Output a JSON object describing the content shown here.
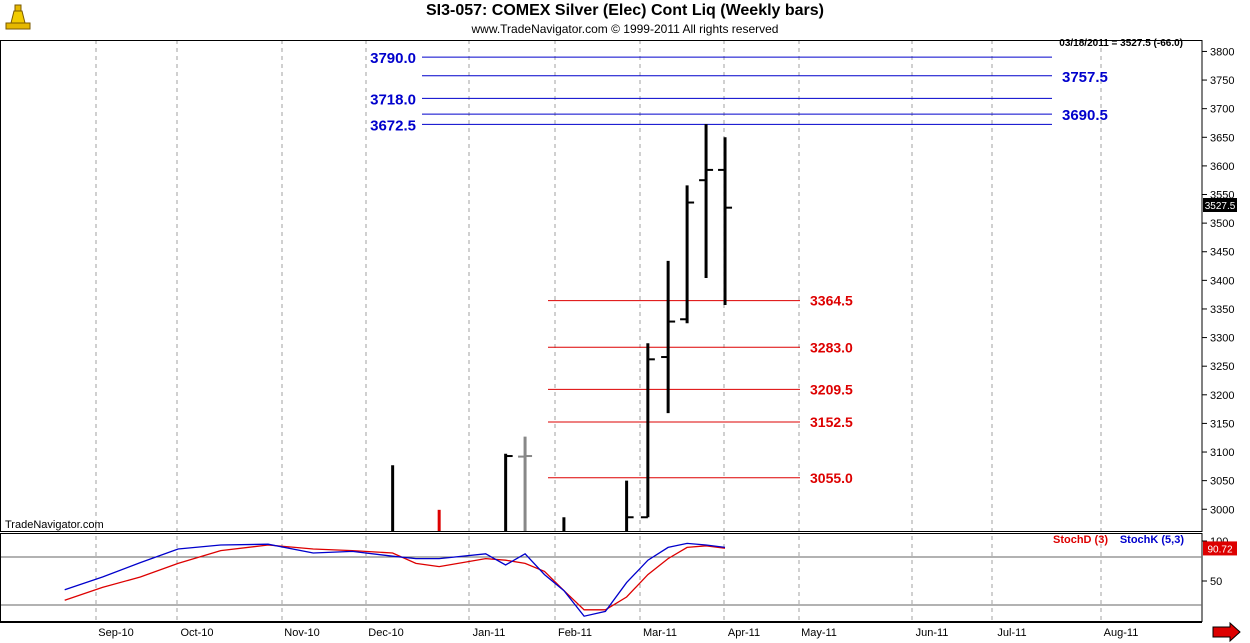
{
  "header": {
    "title": "SI3-057:  COMEX Silver (Elec) Cont Liq  (Weekly bars)",
    "copyright": "www.TradeNavigator.com © 1999-2011 All rights reserved",
    "last_quote": "03/18/2011 = 3527.5 (-66.0)",
    "watermark": "TradeNavigator.com",
    "price_tag": "3527.5"
  },
  "colors": {
    "grid": "#a0a0a0",
    "blue_levels": "#0000cc",
    "red_levels": "#dd0000",
    "stochD": "#dd0000",
    "stochK": "#0000cc",
    "bar": "#000000",
    "bar_gray": "#888888",
    "bar_red": "#dd0000"
  },
  "chart_data": [
    {
      "type": "bar",
      "subtype": "ohlc",
      "title": "SI3-057:  COMEX Silver (Elec) Cont Liq  (Weekly bars)",
      "x_ticks": [
        "Sep-10",
        "Oct-10",
        "Nov-10",
        "Dec-10",
        "Jan-11",
        "Feb-11",
        "Mar-11",
        "Apr-11",
        "May-11",
        "Jun-11",
        "Jul-11",
        "Aug-11"
      ],
      "y_ticks": [
        3000,
        3050,
        3100,
        3150,
        3200,
        3250,
        3300,
        3350,
        3400,
        3450,
        3500,
        3550,
        3600,
        3650,
        3700,
        3750,
        3800
      ],
      "ylim": [
        2962,
        3820
      ],
      "bars": [
        {
          "week": "2010-12-03",
          "o": null,
          "h": 3077,
          "l": 2960,
          "c": null,
          "color": "black"
        },
        {
          "week": "2010-12-17",
          "o": null,
          "h": 2999,
          "l": 2960,
          "c": null,
          "color": "red"
        },
        {
          "week": "2011-01-07",
          "o": null,
          "h": 3097,
          "l": 2960,
          "c": 3093,
          "color": "black"
        },
        {
          "week": "2011-01-14",
          "o": 3092,
          "h": 3127,
          "l": 2960,
          "c": 3093,
          "color": "gray"
        },
        {
          "week": "2011-01-28",
          "o": null,
          "h": 2986,
          "l": 2960,
          "c": null,
          "color": "black"
        },
        {
          "week": "2011-02-18",
          "o": null,
          "h": 3050,
          "l": 2960,
          "c": 2986,
          "color": "black"
        },
        {
          "week": "2011-02-25",
          "o": 2986,
          "h": 3290,
          "l": 2986,
          "c": 3262,
          "color": "black"
        },
        {
          "week": "2011-03-04",
          "o": 3266,
          "h": 3434,
          "l": 3168,
          "c": 3328,
          "color": "black"
        },
        {
          "week": "2011-03-11",
          "o": 3332,
          "h": 3566,
          "l": 3325,
          "c": 3536,
          "color": "black"
        },
        {
          "week": "2011-03-18",
          "o": 3575,
          "h": 3673,
          "l": 3404,
          "c": 3593,
          "color": "black"
        },
        {
          "week": "2011-03-25",
          "o": 3593,
          "h": 3650,
          "l": 3357,
          "c": 3527,
          "color": "black"
        }
      ],
      "levels_blue": [
        {
          "value": 3790.0,
          "label": "3790.0",
          "side": "left"
        },
        {
          "value": 3757.5,
          "label": "3757.5",
          "side": "right"
        },
        {
          "value": 3718.0,
          "label": "3718.0",
          "side": "left"
        },
        {
          "value": 3690.5,
          "label": "3690.5",
          "side": "right"
        },
        {
          "value": 3672.5,
          "label": "3672.5",
          "side": "left"
        }
      ],
      "levels_red": [
        {
          "value": 3364.5,
          "label": "3364.5"
        },
        {
          "value": 3283.0,
          "label": "3283.0"
        },
        {
          "value": 3209.5,
          "label": "3209.5"
        },
        {
          "value": 3152.5,
          "label": "3152.5"
        },
        {
          "value": 3055.0,
          "label": "3055.0"
        }
      ]
    },
    {
      "type": "line",
      "title": "",
      "y_ticks": [
        50,
        100
      ],
      "ylim": [
        0,
        110
      ],
      "levels": [
        80,
        20
      ],
      "readout": "90.72",
      "series": [
        {
          "name": "StochD (3)",
          "color": "#dd0000",
          "values": [
            {
              "x": "2010-08-13",
              "y": 26
            },
            {
              "x": "2010-08-27",
              "y": 42
            },
            {
              "x": "2010-09-10",
              "y": 55
            },
            {
              "x": "2010-09-24",
              "y": 72
            },
            {
              "x": "2010-10-08",
              "y": 88
            },
            {
              "x": "2010-10-22",
              "y": 95
            },
            {
              "x": "2010-11-05",
              "y": 90
            },
            {
              "x": "2010-11-19",
              "y": 88
            },
            {
              "x": "2010-12-03",
              "y": 85
            },
            {
              "x": "2010-12-10",
              "y": 72
            },
            {
              "x": "2010-12-17",
              "y": 68
            },
            {
              "x": "2010-12-31",
              "y": 78
            },
            {
              "x": "2011-01-07",
              "y": 76
            },
            {
              "x": "2011-01-14",
              "y": 72
            },
            {
              "x": "2011-01-21",
              "y": 62
            },
            {
              "x": "2011-01-28",
              "y": 38
            },
            {
              "x": "2011-02-04",
              "y": 14
            },
            {
              "x": "2011-02-11",
              "y": 14
            },
            {
              "x": "2011-02-18",
              "y": 30
            },
            {
              "x": "2011-02-25",
              "y": 58
            },
            {
              "x": "2011-03-04",
              "y": 78
            },
            {
              "x": "2011-03-11",
              "y": 92
            },
            {
              "x": "2011-03-18",
              "y": 94
            },
            {
              "x": "2011-03-25",
              "y": 91
            }
          ]
        },
        {
          "name": "StochK (5,3)",
          "color": "#0000cc",
          "values": [
            {
              "x": "2010-08-13",
              "y": 39
            },
            {
              "x": "2010-08-27",
              "y": 55
            },
            {
              "x": "2010-09-10",
              "y": 73
            },
            {
              "x": "2010-09-24",
              "y": 90
            },
            {
              "x": "2010-10-08",
              "y": 95
            },
            {
              "x": "2010-10-22",
              "y": 96
            },
            {
              "x": "2010-11-05",
              "y": 85
            },
            {
              "x": "2010-11-19",
              "y": 87
            },
            {
              "x": "2010-12-03",
              "y": 81
            },
            {
              "x": "2010-12-10",
              "y": 78
            },
            {
              "x": "2010-12-17",
              "y": 78
            },
            {
              "x": "2010-12-31",
              "y": 84
            },
            {
              "x": "2011-01-07",
              "y": 70
            },
            {
              "x": "2011-01-14",
              "y": 84
            },
            {
              "x": "2011-01-21",
              "y": 58
            },
            {
              "x": "2011-01-28",
              "y": 38
            },
            {
              "x": "2011-02-04",
              "y": 6
            },
            {
              "x": "2011-02-11",
              "y": 12
            },
            {
              "x": "2011-02-18",
              "y": 48
            },
            {
              "x": "2011-02-25",
              "y": 76
            },
            {
              "x": "2011-03-04",
              "y": 92
            },
            {
              "x": "2011-03-11",
              "y": 97
            },
            {
              "x": "2011-03-18",
              "y": 95
            },
            {
              "x": "2011-03-25",
              "y": 92
            }
          ]
        }
      ]
    }
  ]
}
